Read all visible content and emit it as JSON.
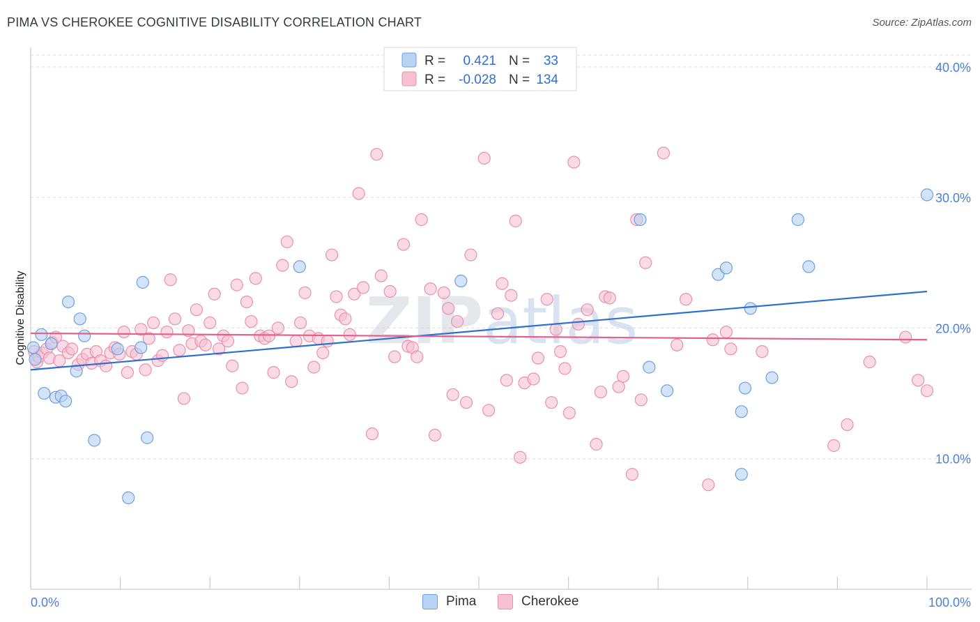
{
  "header": {
    "title": "PIMA VS CHEROKEE COGNITIVE DISABILITY CORRELATION CHART",
    "source": "Source: ZipAtlas.com"
  },
  "watermark": "ZIPatlas",
  "legend": {
    "r_label": "R =",
    "n_label": "N =",
    "rows": [
      {
        "name": "Pima",
        "r": "0.421",
        "n": "33"
      },
      {
        "name": "Cherokee",
        "r": "-0.028",
        "n": "134"
      }
    ]
  },
  "colors": {
    "pima_fill": "#b8d2f3",
    "pima_stroke": "#6f9fdf",
    "pima_line": "#2f6fce",
    "cherokee_fill": "#f6c2d2",
    "cherokee_stroke": "#e890ad",
    "cherokee_line": "#e2608a",
    "axis_label": "#4a7fd4",
    "grid": "#d9dde3"
  },
  "chart_data": {
    "type": "scatter",
    "title": "PIMA VS CHEROKEE COGNITIVE DISABILITY CORRELATION CHART",
    "xlabel": "",
    "ylabel": "Cognitive Disability",
    "xlim": [
      0,
      100
    ],
    "ylim": [
      0,
      40.9
    ],
    "x_tick_labels": [
      "0.0%",
      "100.0%"
    ],
    "y_ticks": [
      10,
      20,
      30,
      40
    ],
    "y_tick_labels": [
      "10.0%",
      "20.0%",
      "30.0%",
      "40.0%"
    ],
    "grid": true,
    "legend_position": "top-center",
    "series": [
      {
        "name": "Pima",
        "r": 0.421,
        "n": 33,
        "trend": {
          "x": [
            0,
            100
          ],
          "y": [
            16.8,
            22.8
          ]
        },
        "points": [
          [
            0.3,
            18.5
          ],
          [
            0.5,
            17.6
          ],
          [
            1.2,
            19.5
          ],
          [
            1.5,
            15.0
          ],
          [
            2.3,
            18.8
          ],
          [
            2.8,
            14.7
          ],
          [
            3.4,
            14.8
          ],
          [
            3.9,
            14.4
          ],
          [
            4.2,
            22.0
          ],
          [
            5.1,
            16.7
          ],
          [
            5.5,
            20.7
          ],
          [
            6.0,
            19.4
          ],
          [
            7.1,
            11.4
          ],
          [
            9.7,
            18.4
          ],
          [
            10.9,
            7.0
          ],
          [
            12.3,
            18.5
          ],
          [
            12.5,
            23.5
          ],
          [
            13.0,
            11.6
          ],
          [
            30.0,
            24.7
          ],
          [
            48.0,
            23.6
          ],
          [
            68.0,
            28.3
          ],
          [
            69.0,
            17.0
          ],
          [
            71.0,
            15.2
          ],
          [
            76.7,
            24.1
          ],
          [
            77.6,
            24.6
          ],
          [
            79.3,
            8.8
          ],
          [
            79.3,
            13.6
          ],
          [
            79.7,
            15.4
          ],
          [
            80.3,
            21.5
          ],
          [
            82.7,
            16.2
          ],
          [
            85.6,
            28.3
          ],
          [
            86.8,
            24.7
          ],
          [
            100.0,
            30.2
          ]
        ]
      },
      {
        "name": "Cherokee",
        "r": -0.028,
        "n": 134,
        "trend": {
          "x": [
            0,
            100
          ],
          "y": [
            19.6,
            19.1
          ]
        },
        "points": [
          [
            0.4,
            18.2
          ],
          [
            0.7,
            17.4
          ],
          [
            0.9,
            17.8
          ],
          [
            1.3,
            18.1
          ],
          [
            1.8,
            18.4
          ],
          [
            2.1,
            17.7
          ],
          [
            2.4,
            18.9
          ],
          [
            2.8,
            19.3
          ],
          [
            3.2,
            17.5
          ],
          [
            3.6,
            18.6
          ],
          [
            4.2,
            18.1
          ],
          [
            4.6,
            18.4
          ],
          [
            5.3,
            17.2
          ],
          [
            5.8,
            17.6
          ],
          [
            6.3,
            18.0
          ],
          [
            6.8,
            17.3
          ],
          [
            7.3,
            18.2
          ],
          [
            7.8,
            17.5
          ],
          [
            8.4,
            17.1
          ],
          [
            8.9,
            18.1
          ],
          [
            9.4,
            18.5
          ],
          [
            9.9,
            18.0
          ],
          [
            10.4,
            19.7
          ],
          [
            10.8,
            16.6
          ],
          [
            11.3,
            18.2
          ],
          [
            11.8,
            18.0
          ],
          [
            12.3,
            19.9
          ],
          [
            12.8,
            16.8
          ],
          [
            13.2,
            19.2
          ],
          [
            13.7,
            20.4
          ],
          [
            14.2,
            17.5
          ],
          [
            14.7,
            17.9
          ],
          [
            15.2,
            19.7
          ],
          [
            15.6,
            23.7
          ],
          [
            16.1,
            20.7
          ],
          [
            16.6,
            18.3
          ],
          [
            17.1,
            14.6
          ],
          [
            17.6,
            19.8
          ],
          [
            18.0,
            18.8
          ],
          [
            18.5,
            21.4
          ],
          [
            19.0,
            19.0
          ],
          [
            19.5,
            18.7
          ],
          [
            20.0,
            20.4
          ],
          [
            20.5,
            22.6
          ],
          [
            21.0,
            18.4
          ],
          [
            21.5,
            19.4
          ],
          [
            22.0,
            19.0
          ],
          [
            22.5,
            17.1
          ],
          [
            23.0,
            23.3
          ],
          [
            23.6,
            15.4
          ],
          [
            24.1,
            22.0
          ],
          [
            24.6,
            20.5
          ],
          [
            25.1,
            23.8
          ],
          [
            25.6,
            19.4
          ],
          [
            26.1,
            19.2
          ],
          [
            26.6,
            19.4
          ],
          [
            27.1,
            16.6
          ],
          [
            27.6,
            20.0
          ],
          [
            28.1,
            24.8
          ],
          [
            28.6,
            26.6
          ],
          [
            29.1,
            15.9
          ],
          [
            29.6,
            19.0
          ],
          [
            30.1,
            20.4
          ],
          [
            30.6,
            22.7
          ],
          [
            31.1,
            19.4
          ],
          [
            31.6,
            17.0
          ],
          [
            32.1,
            19.2
          ],
          [
            32.6,
            18.1
          ],
          [
            33.1,
            19.0
          ],
          [
            33.6,
            25.6
          ],
          [
            34.1,
            22.4
          ],
          [
            34.6,
            21.0
          ],
          [
            35.1,
            20.7
          ],
          [
            35.6,
            19.5
          ],
          [
            36.1,
            22.6
          ],
          [
            36.6,
            30.3
          ],
          [
            37.1,
            23.1
          ],
          [
            38.1,
            11.9
          ],
          [
            38.6,
            33.3
          ],
          [
            39.1,
            24.0
          ],
          [
            40.1,
            22.8
          ],
          [
            40.6,
            17.8
          ],
          [
            41.6,
            26.4
          ],
          [
            42.1,
            18.6
          ],
          [
            42.6,
            18.5
          ],
          [
            43.1,
            17.8
          ],
          [
            43.6,
            28.3
          ],
          [
            44.6,
            23.0
          ],
          [
            45.1,
            11.8
          ],
          [
            46.1,
            22.7
          ],
          [
            46.6,
            21.5
          ],
          [
            47.1,
            14.9
          ],
          [
            47.6,
            20.5
          ],
          [
            48.6,
            14.3
          ],
          [
            49.1,
            25.6
          ],
          [
            50.6,
            33.0
          ],
          [
            51.1,
            13.7
          ],
          [
            52.1,
            21.1
          ],
          [
            52.6,
            23.4
          ],
          [
            53.1,
            16.0
          ],
          [
            53.6,
            22.5
          ],
          [
            54.1,
            28.2
          ],
          [
            54.6,
            10.1
          ],
          [
            55.1,
            15.8
          ],
          [
            56.1,
            16.1
          ],
          [
            56.6,
            17.7
          ],
          [
            57.6,
            22.2
          ],
          [
            58.1,
            14.3
          ],
          [
            58.6,
            19.9
          ],
          [
            59.1,
            18.2
          ],
          [
            59.6,
            16.9
          ],
          [
            60.1,
            13.5
          ],
          [
            60.6,
            32.7
          ],
          [
            61.1,
            20.3
          ],
          [
            62.1,
            21.4
          ],
          [
            63.1,
            11.1
          ],
          [
            63.6,
            15.1
          ],
          [
            64.1,
            22.4
          ],
          [
            64.6,
            22.3
          ],
          [
            65.6,
            15.5
          ],
          [
            66.1,
            16.3
          ],
          [
            67.1,
            8.8
          ],
          [
            67.6,
            28.3
          ],
          [
            68.1,
            14.5
          ],
          [
            68.6,
            25.0
          ],
          [
            70.6,
            33.4
          ],
          [
            72.1,
            18.7
          ],
          [
            73.1,
            22.2
          ],
          [
            75.6,
            8.0
          ],
          [
            76.1,
            19.1
          ],
          [
            77.6,
            19.7
          ],
          [
            78.1,
            18.4
          ],
          [
            81.6,
            18.2
          ],
          [
            89.6,
            11.0
          ],
          [
            91.1,
            12.6
          ],
          [
            93.6,
            17.4
          ],
          [
            97.6,
            19.3
          ],
          [
            99.0,
            16.0
          ],
          [
            100.0,
            15.2
          ]
        ]
      }
    ]
  }
}
